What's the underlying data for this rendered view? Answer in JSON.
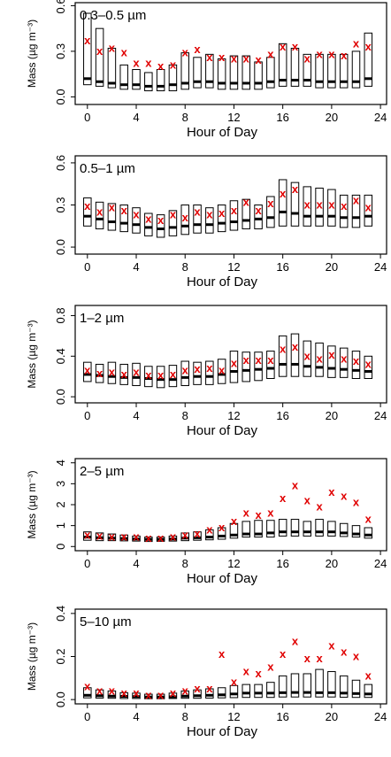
{
  "chart_data": [
    {
      "type": "box",
      "label": "0.3–0.5 µm",
      "xlabel": "Hour of Day",
      "ylabel": "Mass (µg m⁻³)",
      "xlim": [
        -1,
        24.5
      ],
      "ylim": [
        -0.05,
        0.62
      ],
      "xticks": [
        "0",
        "4",
        "8",
        "12",
        "16",
        "20",
        "24"
      ],
      "yticks": [
        "0.0",
        "0.3",
        "0.6"
      ],
      "x": [
        0,
        1,
        2,
        3,
        4,
        5,
        6,
        7,
        8,
        9,
        10,
        11,
        12,
        13,
        14,
        15,
        16,
        17,
        18,
        19,
        20,
        21,
        22,
        23
      ],
      "q1": [
        0.08,
        0.07,
        0.06,
        0.05,
        0.05,
        0.04,
        0.04,
        0.04,
        0.05,
        0.06,
        0.06,
        0.05,
        0.05,
        0.05,
        0.05,
        0.06,
        0.07,
        0.07,
        0.07,
        0.06,
        0.06,
        0.06,
        0.06,
        0.07
      ],
      "median": [
        0.12,
        0.1,
        0.09,
        0.08,
        0.08,
        0.07,
        0.07,
        0.08,
        0.09,
        0.1,
        0.1,
        0.09,
        0.09,
        0.09,
        0.09,
        0.1,
        0.11,
        0.11,
        0.11,
        0.1,
        0.1,
        0.1,
        0.1,
        0.12
      ],
      "q3": [
        0.55,
        0.45,
        0.32,
        0.21,
        0.18,
        0.16,
        0.18,
        0.21,
        0.29,
        0.26,
        0.28,
        0.25,
        0.27,
        0.27,
        0.23,
        0.26,
        0.35,
        0.32,
        0.28,
        0.28,
        0.28,
        0.28,
        0.3,
        0.42
      ],
      "mean": [
        0.37,
        0.3,
        0.32,
        0.29,
        0.22,
        0.22,
        0.2,
        0.21,
        0.29,
        0.31,
        0.26,
        0.26,
        0.25,
        0.25,
        0.24,
        0.28,
        0.33,
        0.33,
        0.25,
        0.28,
        0.28,
        0.27,
        0.35,
        0.33
      ]
    },
    {
      "type": "box",
      "label": "0.5–1 µm",
      "xlabel": "Hour of Day",
      "ylabel": "",
      "xlim": [
        -1,
        24.5
      ],
      "ylim": [
        -0.05,
        0.65
      ],
      "xticks": [
        "0",
        "4",
        "8",
        "12",
        "16",
        "20",
        "24"
      ],
      "yticks": [
        "0.0",
        "0.3",
        "0.6"
      ],
      "x": [
        0,
        1,
        2,
        3,
        4,
        5,
        6,
        7,
        8,
        9,
        10,
        11,
        12,
        13,
        14,
        15,
        16,
        17,
        18,
        19,
        20,
        21,
        22,
        23
      ],
      "q1": [
        0.15,
        0.13,
        0.12,
        0.11,
        0.1,
        0.08,
        0.07,
        0.08,
        0.09,
        0.1,
        0.1,
        0.11,
        0.12,
        0.13,
        0.13,
        0.14,
        0.15,
        0.15,
        0.15,
        0.15,
        0.15,
        0.14,
        0.14,
        0.15
      ],
      "median": [
        0.22,
        0.2,
        0.18,
        0.17,
        0.16,
        0.14,
        0.13,
        0.14,
        0.15,
        0.16,
        0.16,
        0.17,
        0.18,
        0.19,
        0.2,
        0.21,
        0.25,
        0.24,
        0.22,
        0.22,
        0.22,
        0.21,
        0.21,
        0.22
      ],
      "q3": [
        0.35,
        0.32,
        0.31,
        0.3,
        0.28,
        0.24,
        0.23,
        0.26,
        0.3,
        0.3,
        0.28,
        0.3,
        0.33,
        0.34,
        0.3,
        0.36,
        0.48,
        0.46,
        0.43,
        0.42,
        0.41,
        0.37,
        0.37,
        0.37
      ],
      "mean": [
        0.29,
        0.25,
        0.28,
        0.26,
        0.23,
        0.2,
        0.19,
        0.23,
        0.21,
        0.25,
        0.23,
        0.24,
        0.26,
        0.32,
        0.26,
        0.31,
        0.38,
        0.41,
        0.3,
        0.3,
        0.3,
        0.29,
        0.33,
        0.28
      ]
    },
    {
      "type": "box",
      "label": "1–2 µm",
      "xlabel": "Hour of Day",
      "ylabel": "Mass (µg m⁻³)",
      "xlim": [
        -1,
        24.5
      ],
      "ylim": [
        -0.06,
        0.9
      ],
      "xticks": [
        "0",
        "4",
        "8",
        "12",
        "16",
        "20",
        "24"
      ],
      "yticks": [
        "0.0",
        "0.4",
        "0.8"
      ],
      "x": [
        0,
        1,
        2,
        3,
        4,
        5,
        6,
        7,
        8,
        9,
        10,
        11,
        12,
        13,
        14,
        15,
        16,
        17,
        18,
        19,
        20,
        21,
        22,
        23
      ],
      "q1": [
        0.15,
        0.14,
        0.13,
        0.12,
        0.11,
        0.1,
        0.09,
        0.1,
        0.11,
        0.12,
        0.12,
        0.13,
        0.14,
        0.15,
        0.16,
        0.18,
        0.2,
        0.2,
        0.2,
        0.2,
        0.19,
        0.19,
        0.18,
        0.18
      ],
      "median": [
        0.22,
        0.21,
        0.2,
        0.19,
        0.19,
        0.18,
        0.17,
        0.17,
        0.19,
        0.2,
        0.2,
        0.22,
        0.25,
        0.26,
        0.27,
        0.28,
        0.32,
        0.32,
        0.3,
        0.29,
        0.28,
        0.27,
        0.26,
        0.25
      ],
      "q3": [
        0.34,
        0.32,
        0.34,
        0.32,
        0.33,
        0.3,
        0.3,
        0.31,
        0.35,
        0.34,
        0.35,
        0.37,
        0.45,
        0.44,
        0.44,
        0.45,
        0.6,
        0.62,
        0.55,
        0.53,
        0.5,
        0.48,
        0.45,
        0.4
      ],
      "mean": [
        0.26,
        0.23,
        0.24,
        0.22,
        0.24,
        0.21,
        0.21,
        0.22,
        0.26,
        0.27,
        0.28,
        0.26,
        0.33,
        0.36,
        0.36,
        0.36,
        0.47,
        0.49,
        0.4,
        0.37,
        0.41,
        0.37,
        0.35,
        0.32
      ]
    },
    {
      "type": "box",
      "label": "2–5 µm",
      "xlabel": "Hour of Day",
      "ylabel": "Mass (µg m⁻³)",
      "xlim": [
        -1,
        24.5
      ],
      "ylim": [
        -0.2,
        4.2
      ],
      "xticks": [
        "0",
        "4",
        "8",
        "12",
        "16",
        "20",
        "24"
      ],
      "yticks": [
        "0",
        "1",
        "2",
        "3",
        "4"
      ],
      "x": [
        0,
        1,
        2,
        3,
        4,
        5,
        6,
        7,
        8,
        9,
        10,
        11,
        12,
        13,
        14,
        15,
        16,
        17,
        18,
        19,
        20,
        21,
        22,
        23
      ],
      "q1": [
        0.3,
        0.28,
        0.28,
        0.27,
        0.26,
        0.24,
        0.25,
        0.26,
        0.28,
        0.3,
        0.32,
        0.35,
        0.4,
        0.45,
        0.45,
        0.45,
        0.5,
        0.5,
        0.5,
        0.5,
        0.5,
        0.48,
        0.45,
        0.4
      ],
      "median": [
        0.45,
        0.42,
        0.4,
        0.38,
        0.36,
        0.34,
        0.34,
        0.36,
        0.4,
        0.42,
        0.45,
        0.5,
        0.55,
        0.6,
        0.6,
        0.65,
        0.7,
        0.7,
        0.7,
        0.7,
        0.7,
        0.65,
        0.6,
        0.55
      ],
      "q3": [
        0.7,
        0.65,
        0.6,
        0.55,
        0.5,
        0.45,
        0.45,
        0.5,
        0.65,
        0.7,
        0.8,
        0.9,
        1.1,
        1.2,
        1.25,
        1.25,
        1.3,
        1.3,
        1.2,
        1.3,
        1.2,
        1.1,
        1.0,
        0.9
      ],
      "mean": [
        0.55,
        0.5,
        0.45,
        0.45,
        0.45,
        0.4,
        0.4,
        0.45,
        0.55,
        0.6,
        0.8,
        0.9,
        1.2,
        1.6,
        1.5,
        1.6,
        2.3,
        2.9,
        2.2,
        1.9,
        2.6,
        2.4,
        2.1,
        1.3
      ]
    },
    {
      "type": "box",
      "label": "5–10 µm",
      "xlabel": "Hour of Day",
      "ylabel": "Mass (µg m⁻³)",
      "xlim": [
        -1,
        24.5
      ],
      "ylim": [
        -0.02,
        0.42
      ],
      "xticks": [
        "0",
        "4",
        "8",
        "12",
        "16",
        "20",
        "24"
      ],
      "yticks": [
        "0.0",
        "0.2",
        "0.4"
      ],
      "x": [
        0,
        1,
        2,
        3,
        4,
        5,
        6,
        7,
        8,
        9,
        10,
        11,
        12,
        13,
        14,
        15,
        16,
        17,
        18,
        19,
        20,
        21,
        22,
        23
      ],
      "q1": [
        0.008,
        0.007,
        0.006,
        0.005,
        0.005,
        0.004,
        0.004,
        0.005,
        0.006,
        0.006,
        0.007,
        0.008,
        0.009,
        0.01,
        0.01,
        0.01,
        0.012,
        0.012,
        0.012,
        0.012,
        0.012,
        0.011,
        0.01,
        0.01
      ],
      "median": [
        0.02,
        0.018,
        0.016,
        0.015,
        0.014,
        0.012,
        0.012,
        0.013,
        0.016,
        0.018,
        0.02,
        0.022,
        0.026,
        0.03,
        0.03,
        0.03,
        0.032,
        0.033,
        0.033,
        0.032,
        0.032,
        0.03,
        0.028,
        0.026
      ],
      "q3": [
        0.055,
        0.045,
        0.04,
        0.032,
        0.03,
        0.025,
        0.025,
        0.03,
        0.04,
        0.045,
        0.05,
        0.055,
        0.065,
        0.07,
        0.07,
        0.08,
        0.11,
        0.12,
        0.12,
        0.14,
        0.13,
        0.11,
        0.09,
        0.07
      ],
      "mean": [
        0.06,
        0.04,
        0.04,
        0.03,
        0.03,
        0.02,
        0.02,
        0.03,
        0.04,
        0.05,
        0.05,
        0.21,
        0.08,
        0.13,
        0.12,
        0.15,
        0.21,
        0.27,
        0.19,
        0.19,
        0.25,
        0.22,
        0.2,
        0.11
      ]
    }
  ]
}
